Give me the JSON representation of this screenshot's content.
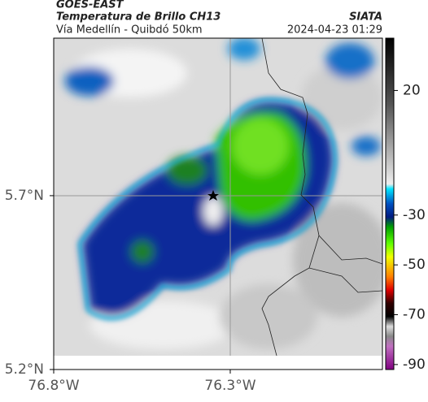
{
  "header": {
    "title": "GOES-EAST",
    "subtitle": "Temperatura de Brillo CH13",
    "route": "Vía Medellín - Quibdó 50km",
    "source": "SIATA",
    "timestamp": "2024-04-23 01:29"
  },
  "map": {
    "ylim": [
      5.2,
      6.153
    ],
    "yticks": [
      {
        "value": 5.7,
        "label": "5.7°N"
      },
      {
        "value": 5.2,
        "label": "5.2°N"
      }
    ],
    "xlim": [
      -76.8,
      -75.869
    ],
    "xticks": [
      {
        "value": -76.8,
        "label": "76.8°W"
      },
      {
        "value": -76.3,
        "label": "76.3°W"
      }
    ]
  },
  "colorbar": {
    "lim": [
      41,
      -92
    ],
    "ticks": [
      20,
      -30,
      -50,
      -70,
      -90
    ]
  }
}
